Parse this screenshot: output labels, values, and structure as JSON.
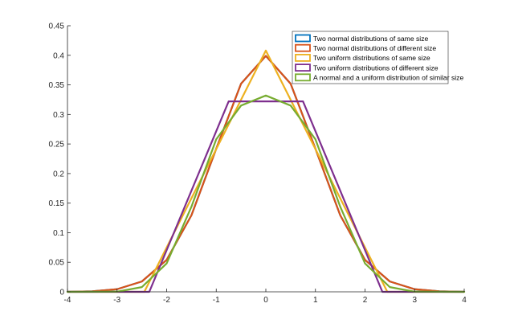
{
  "chart_data": {
    "type": "line",
    "title": "",
    "xlabel": "",
    "ylabel": "",
    "xlim": [
      -4,
      4
    ],
    "ylim": [
      0,
      0.45
    ],
    "xticks": [
      -4,
      -3,
      -2,
      -1,
      0,
      1,
      2,
      3,
      4
    ],
    "xtick_labels": [
      "-4",
      "-3",
      "-2",
      "-1",
      "0",
      "1",
      "2",
      "3",
      "4"
    ],
    "yticks": [
      0,
      0.05,
      0.1,
      0.15,
      0.2,
      0.25,
      0.3,
      0.35,
      0.4,
      0.45
    ],
    "ytick_labels": [
      "0",
      "0.05",
      "0.1",
      "0.15",
      "0.2",
      "0.25",
      "0.3",
      "0.35",
      "0.4",
      "0.45"
    ],
    "grid": false,
    "legend_position": "top-right",
    "series": [
      {
        "name": "Two normal distributions of same size",
        "color": "#0072BD",
        "x": [
          -4,
          -3.5,
          -3,
          -2.5,
          -2,
          -1.5,
          -1,
          -0.5,
          0,
          0.5,
          1,
          1.5,
          2,
          2.5,
          3,
          3.5,
          4
        ],
        "y": [
          0.0001,
          0.0009,
          0.0044,
          0.0175,
          0.054,
          0.1295,
          0.242,
          0.352,
          0.399,
          0.352,
          0.242,
          0.1295,
          0.054,
          0.0175,
          0.0044,
          0.0009,
          0.0001
        ]
      },
      {
        "name": "Two normal distributions of different size",
        "color": "#D95319",
        "x": [
          -4,
          -3.5,
          -3,
          -2.5,
          -2,
          -1.5,
          -1,
          -0.5,
          0,
          0.5,
          1,
          1.5,
          2,
          2.5,
          3,
          3.5,
          4
        ],
        "y": [
          0.0001,
          0.0009,
          0.0044,
          0.0175,
          0.054,
          0.1295,
          0.242,
          0.352,
          0.399,
          0.352,
          0.242,
          0.1295,
          0.054,
          0.0175,
          0.0044,
          0.0009,
          0.0001
        ]
      },
      {
        "name": "Two uniform distributions of same size",
        "color": "#EDB120",
        "x": [
          -4,
          -2.45,
          0,
          2.45,
          4
        ],
        "y": [
          0,
          0,
          0.408,
          0,
          0
        ]
      },
      {
        "name": "Two uniform distributions of different size",
        "color": "#7E2F8E",
        "x": [
          -4,
          -2.35,
          -0.75,
          0.75,
          2.35,
          4
        ],
        "y": [
          0,
          0,
          0.322,
          0.322,
          0,
          0
        ]
      },
      {
        "name": "A normal and a uniform distribution of similar size",
        "color": "#77AC30",
        "x": [
          -4,
          -3,
          -2.5,
          -2,
          -1.5,
          -1,
          -0.5,
          0,
          0.5,
          1,
          1.5,
          2,
          2.5,
          3,
          4
        ],
        "y": [
          0,
          0.0003,
          0.008,
          0.048,
          0.144,
          0.258,
          0.315,
          0.332,
          0.315,
          0.258,
          0.144,
          0.048,
          0.008,
          0.0003,
          0
        ]
      }
    ]
  }
}
